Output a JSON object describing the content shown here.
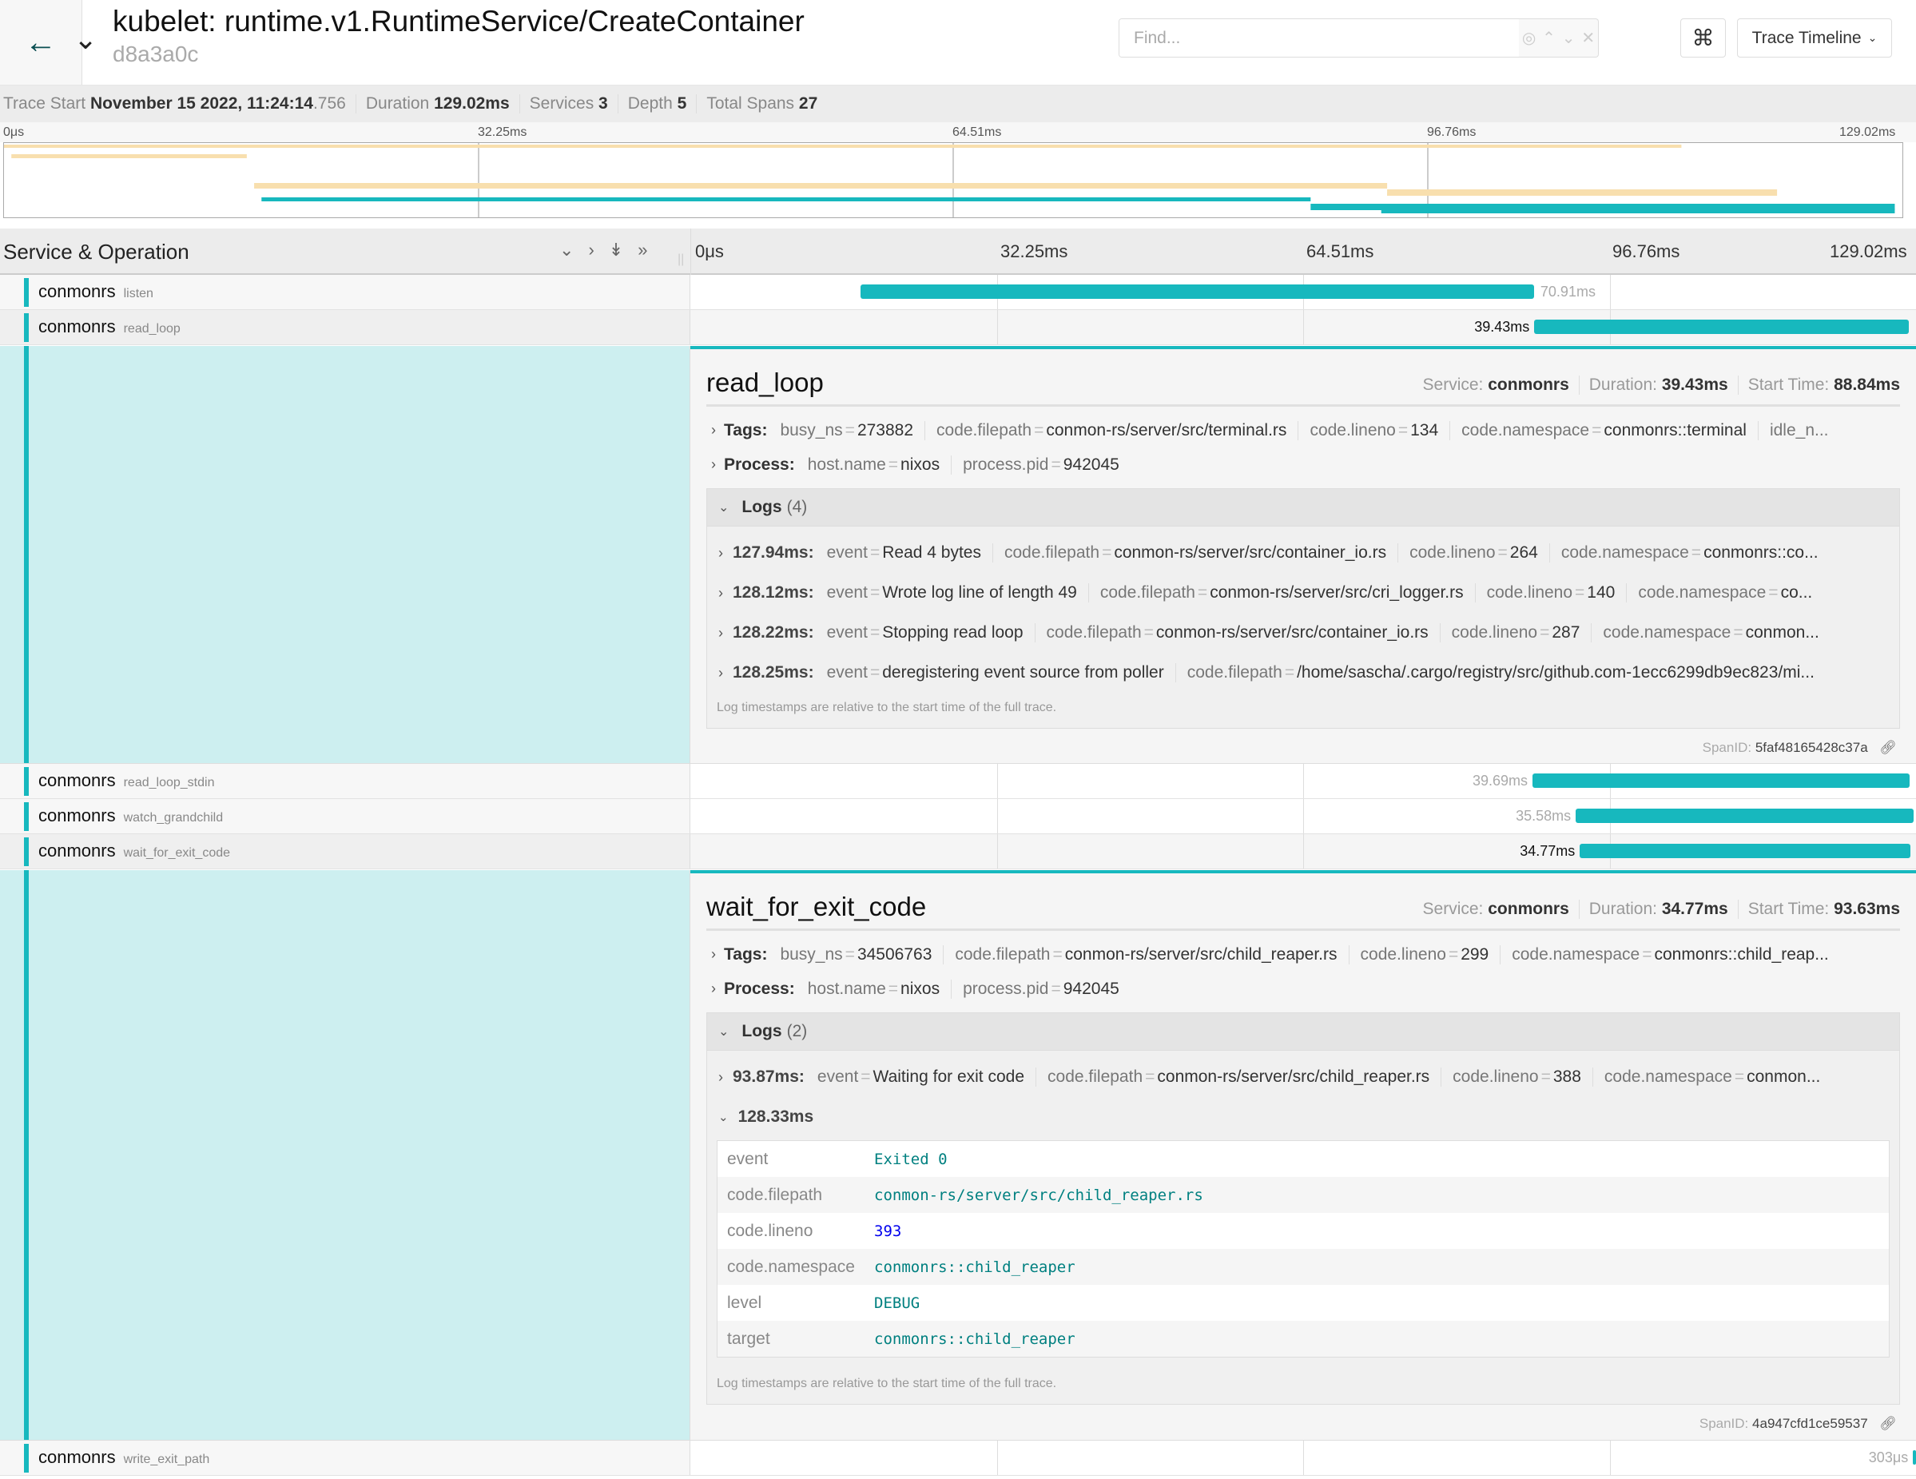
{
  "header": {
    "back_icon": "arrow-left-icon",
    "title": "kubelet: runtime.v1.RuntimeService/CreateContainer",
    "trace_id": "d8a3a0c",
    "find_placeholder": "Find...",
    "find_value": "",
    "find_buttons": [
      "locate-icon",
      "chevron-up-icon",
      "chevron-down-icon",
      "close-icon"
    ],
    "shortcut_icon": "⌘",
    "view_select": "Trace Timeline"
  },
  "summary": {
    "trace_start_label": "Trace Start",
    "trace_start": "November 15 2022, 11:24:14",
    "trace_start_ms": ".756",
    "duration_label": "Duration",
    "duration": "129.02ms",
    "services_label": "Services",
    "services": "3",
    "depth_label": "Depth",
    "depth": "5",
    "total_spans_label": "Total Spans",
    "total_spans": "27"
  },
  "timeline": {
    "total_ms": 129.02,
    "ticks": [
      "0μs",
      "32.25ms",
      "64.51ms",
      "96.76ms",
      "129.02ms"
    ],
    "column_header": "Service & Operation",
    "colors": {
      "bar": "#17b8be",
      "minimap_orange": "#f8dfae",
      "minimap_teal": "#17b8be"
    }
  },
  "minimap": {
    "spans": [
      {
        "start": 0,
        "end": 114,
        "row": 0,
        "kind": "orange"
      },
      {
        "start": 0.5,
        "end": 16.5,
        "row": 1,
        "kind": "orange"
      },
      {
        "start": 17,
        "end": 94,
        "row": 2,
        "kind": "orange"
      },
      {
        "start": 94,
        "end": 120.5,
        "row": 3,
        "kind": "orange"
      },
      {
        "start": 94,
        "end": 108,
        "row": 4,
        "kind": "orange"
      },
      {
        "start": 17.5,
        "end": 88.8,
        "row": 5,
        "kind": "teal"
      },
      {
        "start": 88.8,
        "end": 128.5,
        "row": 6,
        "kind": "teal"
      },
      {
        "start": 93.6,
        "end": 128.5,
        "row": 7,
        "kind": "teal"
      }
    ]
  },
  "spans": [
    {
      "service": "conmonrs",
      "operation": "listen",
      "start": 17.9,
      "duration": 70.91,
      "duration_label": "70.91ms"
    },
    {
      "service": "conmonrs",
      "operation": "read_loop",
      "start": 88.84,
      "duration": 39.43,
      "duration_label": "39.43ms"
    },
    {
      "service": "conmonrs",
      "operation": "read_loop_stdin",
      "start": 88.65,
      "duration": 39.69,
      "duration_label": "39.69ms"
    },
    {
      "service": "conmonrs",
      "operation": "watch_grandchild",
      "start": 93.2,
      "duration": 35.58,
      "duration_label": "35.58ms"
    },
    {
      "service": "conmonrs",
      "operation": "wait_for_exit_code",
      "start": 93.63,
      "duration": 34.77,
      "duration_label": "34.77ms"
    },
    {
      "service": "conmonrs",
      "operation": "write_exit_path",
      "start": 128.7,
      "duration": 0.303,
      "duration_label": "303μs"
    }
  ],
  "details": [
    {
      "name": "read_loop",
      "service_label": "Service:",
      "service": "conmonrs",
      "duration_label": "Duration:",
      "duration": "39.43ms",
      "start_label": "Start Time:",
      "start": "88.84ms",
      "tags_label": "Tags:",
      "tags": [
        [
          "busy_ns",
          "273882"
        ],
        [
          "code.filepath",
          "conmon-rs/server/src/terminal.rs"
        ],
        [
          "code.lineno",
          "134"
        ],
        [
          "code.namespace",
          "conmonrs::terminal"
        ],
        [
          "idle_n...",
          ""
        ]
      ],
      "process_label": "Process:",
      "process": [
        [
          "host.name",
          "nixos"
        ],
        [
          "process.pid",
          "942045"
        ]
      ],
      "logs_label": "Logs",
      "logs_count": "(4)",
      "logs": [
        {
          "ts": "127.94ms:",
          "fields": [
            [
              "event",
              "Read 4 bytes"
            ],
            [
              "code.filepath",
              "conmon-rs/server/src/container_io.rs"
            ],
            [
              "code.lineno",
              "264"
            ],
            [
              "code.namespace",
              "conmonrs::co..."
            ]
          ]
        },
        {
          "ts": "128.12ms:",
          "fields": [
            [
              "event",
              "Wrote log line of length 49"
            ],
            [
              "code.filepath",
              "conmon-rs/server/src/cri_logger.rs"
            ],
            [
              "code.lineno",
              "140"
            ],
            [
              "code.namespace",
              "co..."
            ]
          ]
        },
        {
          "ts": "128.22ms:",
          "fields": [
            [
              "event",
              "Stopping read loop"
            ],
            [
              "code.filepath",
              "conmon-rs/server/src/container_io.rs"
            ],
            [
              "code.lineno",
              "287"
            ],
            [
              "code.namespace",
              "conmon..."
            ]
          ]
        },
        {
          "ts": "128.25ms:",
          "fields": [
            [
              "event",
              "deregistering event source from poller"
            ],
            [
              "code.filepath",
              "/home/sascha/.cargo/registry/src/github.com-1ecc6299db9ec823/mi..."
            ]
          ]
        }
      ],
      "note": "Log timestamps are relative to the start time of the full trace.",
      "span_id_label": "SpanID:",
      "span_id": "5faf48165428c37a"
    },
    {
      "name": "wait_for_exit_code",
      "service_label": "Service:",
      "service": "conmonrs",
      "duration_label": "Duration:",
      "duration": "34.77ms",
      "start_label": "Start Time:",
      "start": "93.63ms",
      "tags_label": "Tags:",
      "tags": [
        [
          "busy_ns",
          "34506763"
        ],
        [
          "code.filepath",
          "conmon-rs/server/src/child_reaper.rs"
        ],
        [
          "code.lineno",
          "299"
        ],
        [
          "code.namespace",
          "conmonrs::child_reap..."
        ]
      ],
      "process_label": "Process:",
      "process": [
        [
          "host.name",
          "nixos"
        ],
        [
          "process.pid",
          "942045"
        ]
      ],
      "logs_label": "Logs",
      "logs_count": "(2)",
      "logs": [
        {
          "ts": "93.87ms:",
          "fields": [
            [
              "event",
              "Waiting for exit code"
            ],
            [
              "code.filepath",
              "conmon-rs/server/src/child_reaper.rs"
            ],
            [
              "code.lineno",
              "388"
            ],
            [
              "code.namespace",
              "conmon..."
            ]
          ]
        }
      ],
      "expanded_log": {
        "ts": "128.33ms",
        "fields": [
          [
            "event",
            "Exited 0"
          ],
          [
            "code.filepath",
            "conmon-rs/server/src/child_reaper.rs"
          ],
          [
            "code.lineno",
            "393"
          ],
          [
            "code.namespace",
            "conmonrs::child_reaper"
          ],
          [
            "level",
            "DEBUG"
          ],
          [
            "target",
            "conmonrs::child_reaper"
          ]
        ]
      },
      "note": "Log timestamps are relative to the start time of the full trace.",
      "span_id_label": "SpanID:",
      "span_id": "4a947cfd1ce59537"
    }
  ]
}
